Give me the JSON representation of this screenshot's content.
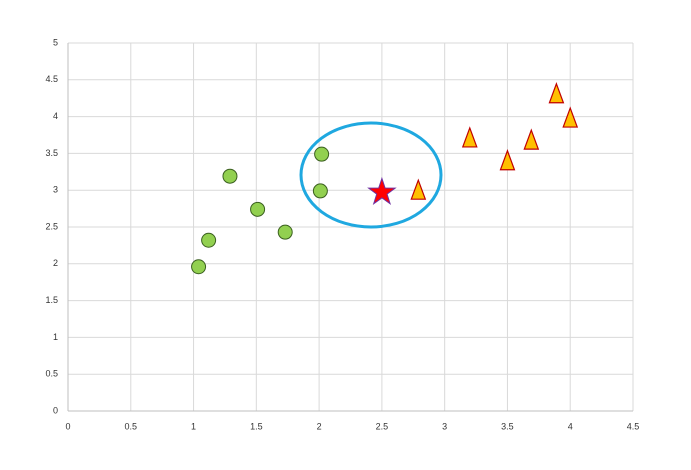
{
  "chart_data": {
    "type": "scatter",
    "xlim": [
      0,
      4.5
    ],
    "xticks": [
      0,
      0.5,
      1,
      1.5,
      2,
      2.5,
      3,
      3.5,
      4,
      4.5
    ],
    "ylim": [
      0,
      5
    ],
    "yticks": [
      0,
      0.5,
      1,
      1.5,
      2,
      2.5,
      3,
      3.5,
      4,
      4.5,
      5
    ],
    "grid": true,
    "series": [
      {
        "color": "#92d050",
        "marker": "circle",
        "x": [
          1.04,
          1.12,
          1.29,
          1.51,
          1.73,
          2.02,
          2.01
        ],
        "values": [
          1.96,
          2.32,
          3.19,
          2.74,
          2.43,
          3.49,
          2.99
        ]
      },
      {
        "color": "#ffc000",
        "marker": "triangle",
        "x": [
          2.79,
          3.2,
          3.5,
          3.69,
          3.89,
          4.0
        ],
        "values": [
          3.0,
          3.71,
          3.4,
          3.68,
          4.31,
          3.98
        ]
      },
      {
        "color": "#ff0000",
        "marker": "star",
        "x": [
          2.5
        ],
        "values": [
          2.97
        ]
      }
    ]
  }
}
